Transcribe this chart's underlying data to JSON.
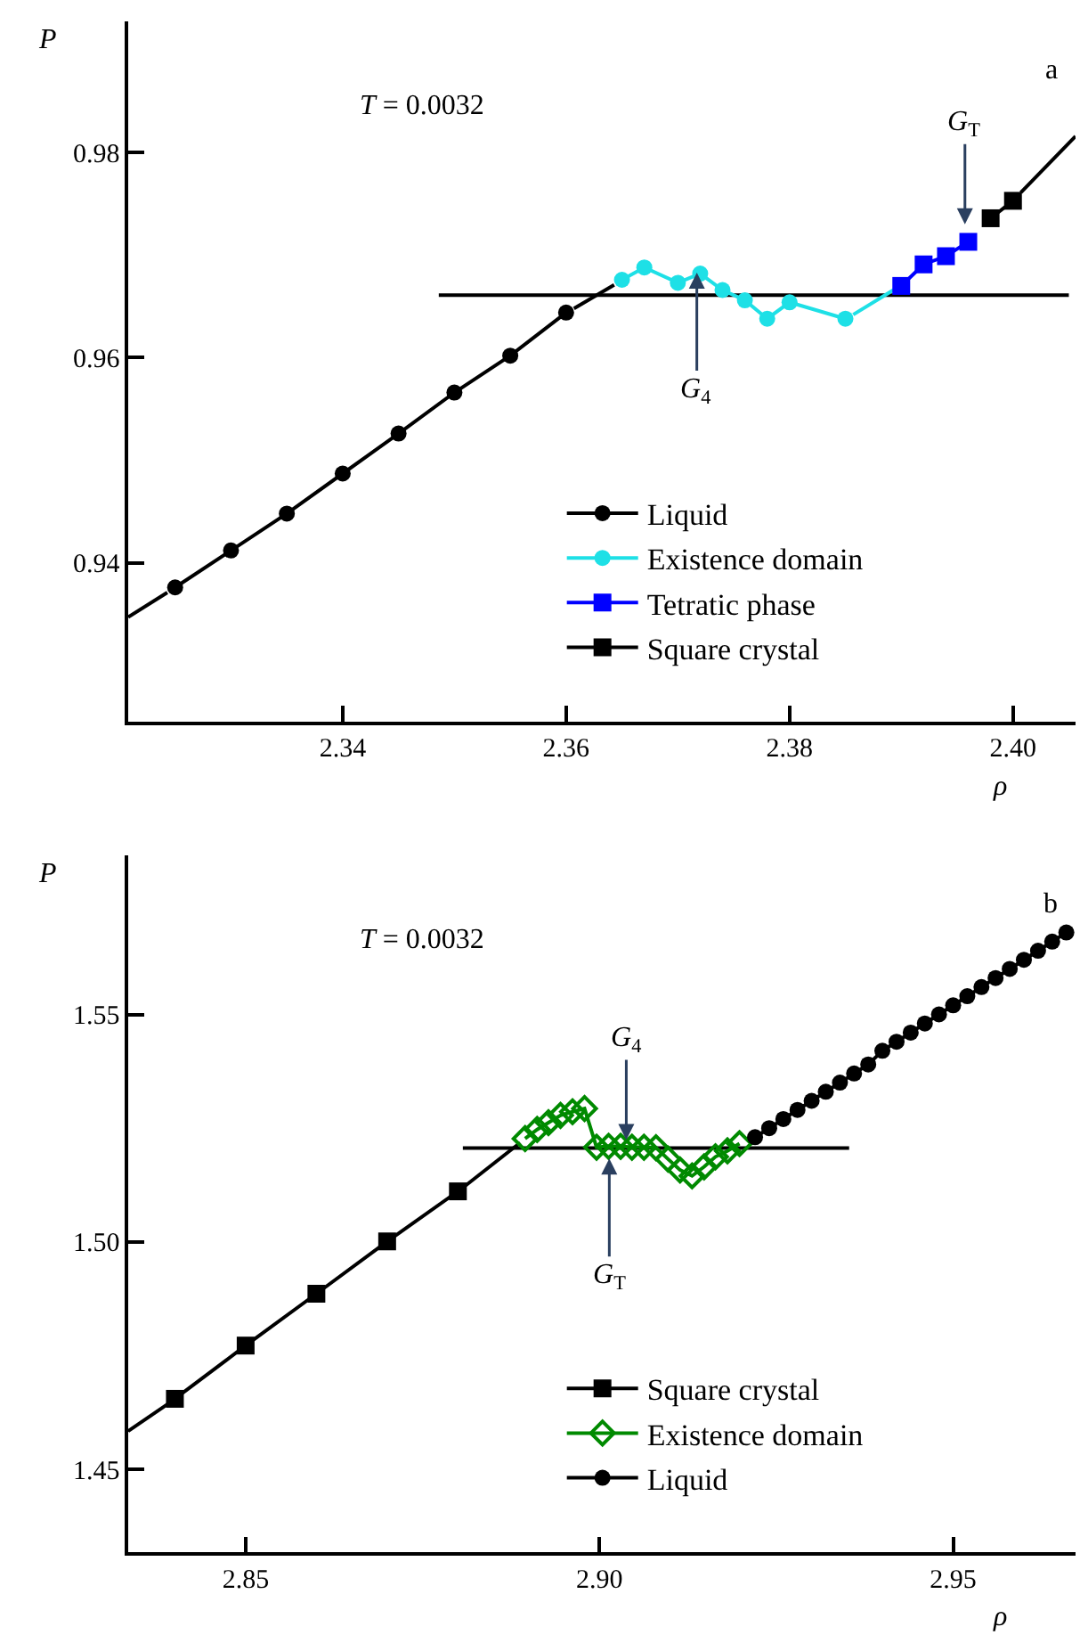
{
  "chart_data": [
    {
      "type": "line",
      "xlabel": "ρ",
      "ylabel": "P",
      "annotations": [
        "T = 0.0032",
        "a",
        {
          "text": "G$_{4}$",
          "x": 2.3717,
          "y": 0.9683
        },
        {
          "text": "G$_{T}$",
          "x": 2.3957,
          "y": 0.973
        }
      ],
      "xlim": [
        2.3208,
        2.4056
      ],
      "ylim": [
        0.9245,
        0.9928
      ],
      "xticks": [
        2.34,
        2.36,
        2.38,
        {
          "value": 2.4,
          "label": "2.40"
        }
      ],
      "yticks": [
        0.94,
        0.96,
        0.98
      ],
      "legend": "bottom",
      "line_style": "solid",
      "series": [
        {
          "color": "#000000",
          "marker": "none",
          "x": [
            2.3208,
            2.3243
          ],
          "values": [
            0.9347,
            0.9371
          ]
        },
        {
          "color": "#000000",
          "marker": "none",
          "x": [
            2.3607,
            2.3643
          ],
          "values": [
            0.9648,
            0.9671
          ]
        },
        {
          "color": "#000000",
          "marker": "none",
          "x": [
            2.3486,
            2.405
          ],
          "values": [
            0.9661,
            0.9661
          ]
        },
        {
          "color": "#000000",
          "marker": "none",
          "x": [
            2.4007,
            2.4056
          ],
          "values": [
            0.9761,
            0.9816
          ]
        },
        {
          "name": "Liquid",
          "color": "#000000",
          "marker": "circle",
          "x": [
            2.325,
            2.33,
            2.335,
            2.34,
            2.345,
            2.35,
            2.355,
            2.36
          ],
          "values": [
            0.9376,
            0.9412,
            0.9448,
            0.9487,
            0.9526,
            0.9566,
            0.9602,
            0.9644
          ]
        },
        {
          "name": "Existence domain",
          "color": "#1ee0e6",
          "marker": "circle",
          "x": [
            2.365,
            2.367,
            2.37,
            2.372,
            2.374,
            2.376,
            2.378,
            2.38,
            2.385
          ],
          "values": [
            0.9676,
            0.9688,
            0.9673,
            0.9682,
            0.9666,
            0.9656,
            0.9638,
            0.9654,
            0.9638
          ]
        },
        {
          "color": "#1ee0e6",
          "marker": "none",
          "x": [
            2.3857,
            2.3893
          ],
          "values": [
            0.9642,
            0.9666
          ]
        },
        {
          "name": "Tetratic phase",
          "color": "#0000ff",
          "marker": "square",
          "x": [
            2.39,
            2.392,
            2.394,
            2.396
          ],
          "values": [
            0.967,
            0.9691,
            0.9699,
            0.9713
          ]
        },
        {
          "name": "Square crystal",
          "color": "#000000",
          "marker": "square",
          "x": [
            2.398,
            2.4
          ],
          "values": [
            0.9736,
            0.9753
          ]
        }
      ]
    },
    {
      "type": "line",
      "xlabel": "ρ",
      "ylabel": "P",
      "annotations": [
        "T = 0.0032",
        "b",
        {
          "text": "G$_{T}$",
          "x": 2.9014,
          "y": 1.5183
        },
        {
          "text": "G$_{4}$",
          "x": 2.9038,
          "y": 1.5224
        }
      ],
      "xlim": [
        2.8334,
        2.9673
      ],
      "ylim": [
        1.4318,
        1.5849
      ],
      "xticks": [
        2.85,
        {
          "value": 2.9,
          "label": "2.90"
        },
        2.95
      ],
      "yticks": [
        1.45,
        {
          "value": 1.5,
          "label": "1.50"
        },
        1.55
      ],
      "legend": "bottom",
      "line_style": "solid",
      "series": [
        {
          "color": "#000000",
          "marker": "none",
          "x": [
            2.8334,
            2.8393
          ],
          "values": [
            1.4584,
            1.4647
          ]
        },
        {
          "color": "#000000",
          "marker": "none",
          "x": [
            2.8807,
            2.9353
          ],
          "values": [
            1.5206,
            1.5206
          ]
        },
        {
          "color": "#000000",
          "marker": "none",
          "x": [
            2.8807,
            2.8888
          ],
          "values": [
            1.5119,
            1.5218
          ]
        },
        {
          "name": "Square crystal",
          "color": "#000000",
          "marker": "square",
          "x": [
            2.84,
            2.85,
            2.86,
            2.87,
            2.88
          ],
          "values": [
            1.4655,
            1.4772,
            1.4886,
            1.5001,
            1.5111
          ]
        },
        {
          "name": "Existence domain",
          "color": "#008a00",
          "marker": "diamond",
          "x": [
            2.8895,
            2.8912,
            2.8928,
            2.8945,
            2.8962,
            2.8979,
            2.8996,
            2.9013,
            2.903,
            2.9046,
            2.9063,
            2.908,
            2.9097,
            2.9114,
            2.9131,
            2.9148,
            2.9164,
            2.9181,
            2.9198
          ],
          "values": [
            1.5227,
            1.5247,
            1.5262,
            1.5278,
            1.5286,
            1.5293,
            1.5208,
            1.521,
            1.521,
            1.5208,
            1.5208,
            1.5207,
            1.5182,
            1.5158,
            1.5145,
            1.5165,
            1.5187,
            1.52,
            1.5216
          ]
        },
        {
          "name": "Liquid",
          "color": "#000000",
          "marker": "circle",
          "x": [
            2.922,
            2.924,
            2.926,
            2.928,
            2.93,
            2.932,
            2.934,
            2.936,
            2.938,
            2.94,
            2.942,
            2.944,
            2.946,
            2.948,
            2.95,
            2.952,
            2.954,
            2.956,
            2.958,
            2.96,
            2.962,
            2.964,
            2.966
          ],
          "values": [
            1.523,
            1.525,
            1.527,
            1.529,
            1.531,
            1.533,
            1.535,
            1.537,
            1.539,
            1.542,
            1.544,
            1.546,
            1.548,
            1.55,
            1.552,
            1.554,
            1.556,
            1.558,
            1.56,
            1.562,
            1.564,
            1.566,
            1.568
          ]
        }
      ]
    }
  ]
}
